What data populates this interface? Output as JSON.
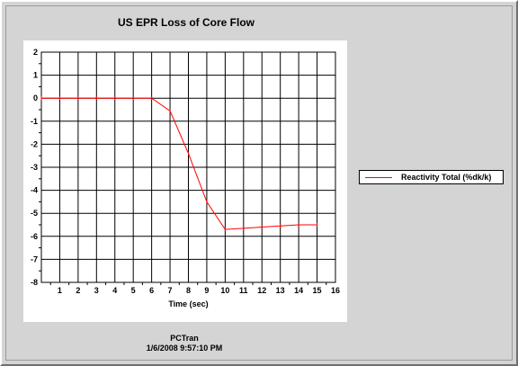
{
  "chart_data": {
    "type": "line",
    "title": "US EPR Loss of Core Flow",
    "xlabel": "Time (sec)",
    "ylabel": "",
    "xlim": [
      0,
      16
    ],
    "ylim": [
      -8,
      2
    ],
    "x_ticks": [
      "1",
      "2",
      "3",
      "4",
      "5",
      "6",
      "7",
      "8",
      "9",
      "10",
      "11",
      "12",
      "13",
      "14",
      "15",
      "16"
    ],
    "y_ticks": [
      "2",
      "1",
      "0",
      "-1",
      "-2",
      "-3",
      "-4",
      "-5",
      "-6",
      "-7",
      "-8"
    ],
    "grid": true,
    "legend_position": "right",
    "series": [
      {
        "name": "Reactivity Total (%dk/k)",
        "color": "#ff0000",
        "x": [
          0,
          1,
          2,
          3,
          4,
          5,
          6,
          7,
          8,
          9,
          10,
          11,
          12,
          13,
          14,
          15
        ],
        "y": [
          0,
          0,
          0,
          0,
          0,
          0,
          0,
          -0.55,
          -2.4,
          -4.5,
          -5.7,
          -5.65,
          -5.6,
          -5.55,
          -5.5,
          -5.5
        ]
      }
    ]
  },
  "footer": {
    "source": "PCTran",
    "timestamp": "1/6/2008 9:57:10 PM"
  }
}
